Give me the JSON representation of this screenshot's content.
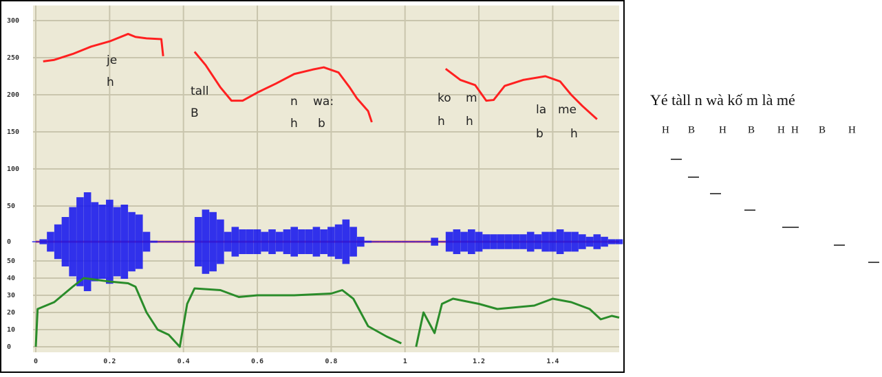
{
  "chart_data": [
    {
      "type": "line",
      "name": "pitch",
      "color": "#ff2020",
      "x": [
        0.02,
        0.05,
        0.1,
        0.15,
        0.2,
        0.25,
        0.27,
        0.3,
        0.34,
        0.345,
        null,
        0.43,
        0.46,
        0.5,
        0.53,
        0.56,
        0.6,
        0.65,
        0.7,
        0.75,
        0.78,
        0.82,
        0.85,
        0.87,
        0.9,
        0.91,
        null,
        1.11,
        1.15,
        1.19,
        1.22,
        1.24,
        1.27,
        1.32,
        1.38,
        1.42,
        1.45,
        1.48,
        1.52
      ],
      "values": [
        245,
        247,
        255,
        265,
        272,
        282,
        278,
        276,
        275,
        252,
        null,
        258,
        240,
        210,
        192,
        192,
        203,
        215,
        228,
        234,
        237,
        230,
        210,
        195,
        178,
        163,
        null,
        235,
        220,
        213,
        192,
        193,
        212,
        220,
        225,
        218,
        200,
        185,
        167
      ],
      "xlim": [
        0,
        1.58
      ],
      "ylim": [
        50,
        320
      ],
      "yticks": [
        50,
        100,
        150,
        200,
        250,
        300
      ],
      "grid": true,
      "annotations": [
        "je",
        "h",
        "tall",
        "B",
        "n",
        "wa:",
        "h",
        "b",
        "ko",
        "m",
        "h",
        "h",
        "la",
        "me",
        "b",
        "h"
      ]
    },
    {
      "type": "waveform",
      "name": "amplitude",
      "color": "#1010ee",
      "x": [
        0,
        0.02,
        0.04,
        0.06,
        0.08,
        0.1,
        0.12,
        0.14,
        0.16,
        0.18,
        0.2,
        0.22,
        0.24,
        0.26,
        0.28,
        0.3,
        0.32,
        0.34,
        0.36,
        0.38,
        0.4,
        0.42,
        0.44,
        0.46,
        0.48,
        0.5,
        0.52,
        0.54,
        0.56,
        0.58,
        0.6,
        0.62,
        0.64,
        0.66,
        0.68,
        0.7,
        0.72,
        0.74,
        0.76,
        0.78,
        0.8,
        0.82,
        0.84,
        0.86,
        0.88,
        0.9,
        0.92,
        0.94,
        0.96,
        0.98,
        1,
        1.02,
        1.04,
        1.06,
        1.08,
        1.1,
        1.12,
        1.14,
        1.16,
        1.18,
        1.2,
        1.22,
        1.24,
        1.26,
        1.28,
        1.3,
        1.32,
        1.34,
        1.36,
        1.38,
        1.4,
        1.42,
        1.44,
        1.46,
        1.48,
        1.5,
        1.52,
        1.54,
        1.56,
        1.58
      ],
      "values": [
        0.01,
        0.05,
        0.2,
        0.35,
        0.5,
        0.7,
        0.9,
        1.0,
        0.8,
        0.75,
        0.85,
        0.7,
        0.75,
        0.6,
        0.55,
        0.2,
        0.02,
        0.01,
        0.01,
        0.01,
        0.01,
        0.01,
        0.5,
        0.65,
        0.6,
        0.45,
        0.2,
        0.3,
        0.25,
        0.25,
        0.25,
        0.2,
        0.25,
        0.2,
        0.25,
        0.3,
        0.25,
        0.25,
        0.3,
        0.25,
        0.3,
        0.35,
        0.45,
        0.3,
        0.1,
        0.02,
        0.01,
        0.01,
        0.01,
        0.01,
        0.01,
        0.01,
        0.01,
        0.01,
        0.08,
        0.01,
        0.2,
        0.25,
        0.2,
        0.25,
        0.2,
        0.15,
        0.15,
        0.15,
        0.15,
        0.15,
        0.15,
        0.2,
        0.15,
        0.2,
        0.2,
        0.25,
        0.2,
        0.2,
        0.15,
        0.1,
        0.15,
        0.1,
        0.05,
        0.05
      ],
      "xlim": [
        0,
        1.58
      ],
      "ylim": [
        -1,
        1
      ],
      "yticks": [
        0
      ]
    },
    {
      "type": "line",
      "name": "intensity",
      "color": "#2a8c2a",
      "x": [
        0,
        0.005,
        0.05,
        0.1,
        0.13,
        0.2,
        0.25,
        0.27,
        0.3,
        0.33,
        0.36,
        0.39,
        0.41,
        0.43,
        0.5,
        0.55,
        0.6,
        0.7,
        0.8,
        0.83,
        0.86,
        0.9,
        0.95,
        0.99,
        null,
        1.03,
        1.05,
        1.08,
        1.1,
        1.13,
        1.2,
        1.25,
        1.35,
        1.4,
        1.45,
        1.5,
        1.53,
        1.56,
        1.58
      ],
      "values": [
        0,
        22,
        26,
        35,
        40,
        38,
        37,
        35,
        20,
        10,
        7,
        0,
        25,
        34,
        33,
        29,
        30,
        30,
        31,
        33,
        28,
        12,
        6,
        2,
        null,
        0,
        20,
        8,
        25,
        28,
        25,
        22,
        24,
        28,
        26,
        22,
        16,
        18,
        17
      ],
      "xlim": [
        0,
        1.58
      ],
      "ylim": [
        0,
        50
      ],
      "yticks": [
        0,
        10,
        20,
        30,
        40,
        50
      ],
      "xticks": [
        0,
        0.2,
        0.4,
        0.6,
        0.8,
        1,
        1.2,
        1.4
      ],
      "grid": true
    }
  ],
  "transcription": {
    "sentence": "Yé tàll n wà kố m là mé",
    "tones": [
      "H",
      "B",
      "H",
      "B",
      "H",
      "H",
      "B",
      "H"
    ]
  }
}
